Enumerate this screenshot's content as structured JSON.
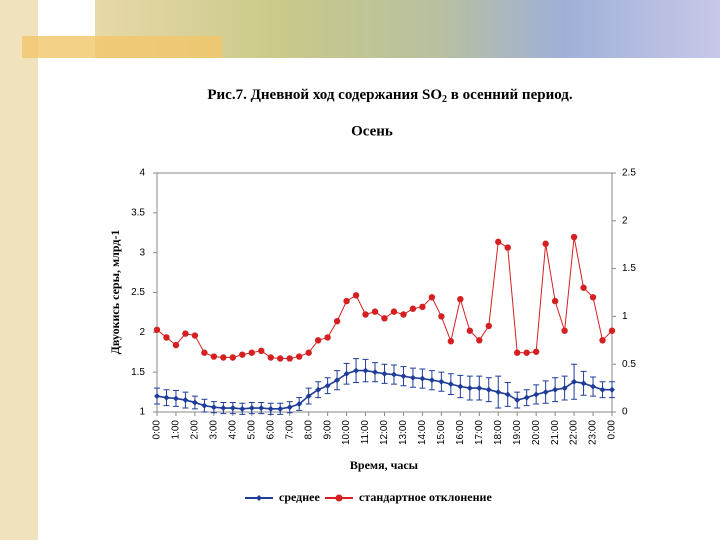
{
  "caption_before": "Рис.7. Дневной ход содержания SO",
  "caption_sub": "2",
  "caption_after": " в осенний период.",
  "chart_data": {
    "type": "line",
    "title": "Осень",
    "x_label": "Время, часы",
    "y_label": "Двуокись серы, млрд-1",
    "xlim": [
      0,
      24
    ],
    "xticks": [
      {
        "value": 0,
        "label": "0:00"
      },
      {
        "value": 1,
        "label": "1:00"
      },
      {
        "value": 2,
        "label": "2:00"
      },
      {
        "value": 3,
        "label": "3:00"
      },
      {
        "value": 4,
        "label": "4:00"
      },
      {
        "value": 5,
        "label": "5:00"
      },
      {
        "value": 6,
        "label": "6:00"
      },
      {
        "value": 7,
        "label": "7:00"
      },
      {
        "value": 8,
        "label": "8:00"
      },
      {
        "value": 9,
        "label": "9:00"
      },
      {
        "value": 10,
        "label": "10:00"
      },
      {
        "value": 11,
        "label": "11:00"
      },
      {
        "value": 12,
        "label": "12:00"
      },
      {
        "value": 13,
        "label": "13:00"
      },
      {
        "value": 14,
        "label": "14:00"
      },
      {
        "value": 15,
        "label": "15:00"
      },
      {
        "value": 16,
        "label": "16:00"
      },
      {
        "value": 17,
        "label": "17:00"
      },
      {
        "value": 18,
        "label": "18:00"
      },
      {
        "value": 19,
        "label": "19:00"
      },
      {
        "value": 20,
        "label": "20:00"
      },
      {
        "value": 21,
        "label": "21:00"
      },
      {
        "value": 22,
        "label": "22:00"
      },
      {
        "value": 23,
        "label": "23:00"
      },
      {
        "value": 24,
        "label": "0:00"
      }
    ],
    "ylim": [
      1,
      4
    ],
    "yticks": [
      1,
      1.5,
      2,
      2.5,
      3,
      3.5,
      4
    ],
    "y2lim": [
      0,
      2.5
    ],
    "y2ticks": [
      0,
      0.5,
      1,
      1.5,
      2,
      2.5
    ],
    "x": [
      0,
      0.5,
      1,
      1.5,
      2,
      2.5,
      3,
      3.5,
      4,
      4.5,
      5,
      5.5,
      6,
      6.5,
      7,
      7.5,
      8,
      8.5,
      9,
      9.5,
      10,
      10.5,
      11,
      11.5,
      12,
      12.5,
      13,
      13.5,
      14,
      14.5,
      15,
      15.5,
      16,
      16.5,
      17,
      17.5,
      18,
      18.5,
      19,
      19.5,
      20,
      20.5,
      21,
      21.5,
      22,
      22.5,
      23,
      23.5,
      24
    ],
    "series": [
      {
        "name": "среднее",
        "color": "#1f3c99",
        "marker": "diamond",
        "values": [
          1.2,
          1.18,
          1.17,
          1.15,
          1.12,
          1.08,
          1.06,
          1.05,
          1.05,
          1.04,
          1.05,
          1.05,
          1.04,
          1.04,
          1.06,
          1.1,
          1.2,
          1.28,
          1.33,
          1.4,
          1.48,
          1.52,
          1.52,
          1.5,
          1.48,
          1.47,
          1.45,
          1.43,
          1.42,
          1.4,
          1.38,
          1.35,
          1.32,
          1.3,
          1.3,
          1.28,
          1.25,
          1.22,
          1.15,
          1.18,
          1.22,
          1.25,
          1.28,
          1.3,
          1.38,
          1.36,
          1.32,
          1.28,
          1.28
        ],
        "errors": [
          0.1,
          0.1,
          0.1,
          0.1,
          0.08,
          0.08,
          0.07,
          0.07,
          0.07,
          0.07,
          0.07,
          0.07,
          0.07,
          0.07,
          0.07,
          0.08,
          0.1,
          0.1,
          0.1,
          0.12,
          0.13,
          0.15,
          0.14,
          0.12,
          0.12,
          0.12,
          0.12,
          0.12,
          0.12,
          0.12,
          0.12,
          0.13,
          0.14,
          0.15,
          0.15,
          0.15,
          0.2,
          0.15,
          0.1,
          0.1,
          0.12,
          0.14,
          0.15,
          0.15,
          0.22,
          0.15,
          0.12,
          0.1,
          0.1
        ]
      },
      {
        "name": "стандартное отклонение",
        "color": "#d42020",
        "marker": "circle",
        "axis": "y2",
        "values": [
          0.86,
          0.78,
          0.7,
          0.82,
          0.8,
          0.62,
          0.58,
          0.57,
          0.57,
          0.6,
          0.62,
          0.64,
          0.57,
          0.56,
          0.56,
          0.58,
          0.62,
          0.75,
          0.78,
          0.95,
          1.16,
          1.22,
          1.02,
          1.05,
          0.98,
          1.05,
          1.02,
          1.08,
          1.1,
          1.2,
          1.0,
          0.74,
          1.18,
          0.85,
          0.75,
          0.9,
          1.78,
          1.72,
          0.62,
          0.62,
          0.63,
          1.76,
          1.16,
          0.85,
          1.83,
          1.3,
          1.2,
          0.75,
          0.85
        ]
      }
    ]
  }
}
